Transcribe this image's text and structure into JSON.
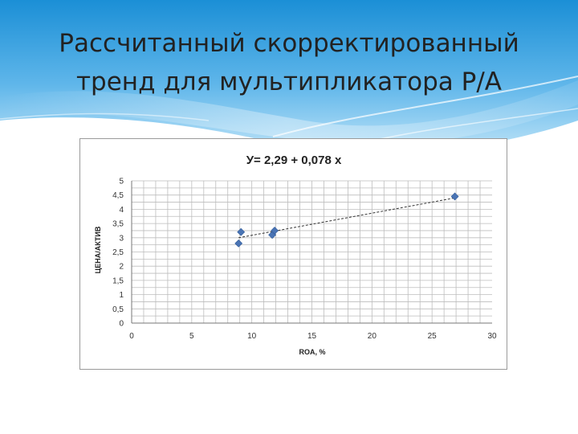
{
  "slide": {
    "title_line1": "Рассчитанный скорректированный",
    "title_line2": "тренд для мультипликатора Р/А"
  },
  "colors": {
    "header_top": "#1b8fd6",
    "header_mid": "#7cc6ef",
    "marker": "#4a74b4",
    "grid": "#bdbdbd",
    "trend": "#333333"
  },
  "chart_data": {
    "type": "scatter",
    "title": "У= 2,29 + 0,078 x",
    "xlabel": "ROA, %",
    "ylabel": "ЦЕНА/АКТИВ",
    "xlim": [
      0,
      30
    ],
    "ylim": [
      0,
      5
    ],
    "x_ticks": [
      0,
      5,
      10,
      15,
      20,
      25,
      30
    ],
    "x_tick_labels": [
      "0",
      "5",
      "10",
      "15",
      "20",
      "25",
      "30"
    ],
    "y_ticks": [
      0,
      0.5,
      1,
      1.5,
      2,
      2.5,
      3,
      3.5,
      4,
      4.5,
      5
    ],
    "y_tick_labels": [
      "0",
      "0,5",
      "1",
      "1,5",
      "2",
      "2,5",
      "3",
      "3,5",
      "4",
      "4,5",
      "5"
    ],
    "grid": true,
    "points": [
      {
        "x": 8.9,
        "y": 2.8
      },
      {
        "x": 9.1,
        "y": 3.2
      },
      {
        "x": 11.7,
        "y": 3.1
      },
      {
        "x": 11.9,
        "y": 3.25
      },
      {
        "x": 26.9,
        "y": 4.45
      }
    ],
    "trendline": {
      "style": "dashed",
      "x": [
        8.9,
        26.9
      ],
      "y": [
        3.0,
        4.4
      ]
    }
  }
}
